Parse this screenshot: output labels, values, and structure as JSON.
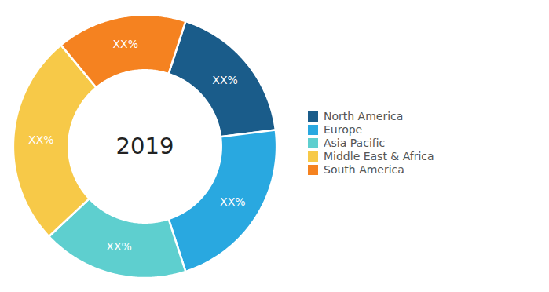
{
  "chart_data": {
    "type": "donut",
    "title": "2019",
    "categories": [
      "North America",
      "Europe",
      "Asia Pacific",
      "Middle East & Africa",
      "South America"
    ],
    "values": [
      18,
      22,
      18,
      26,
      16
    ],
    "colors": [
      "#1a5c8a",
      "#29a8e0",
      "#5ecfcf",
      "#f7c948",
      "#f58220"
    ],
    "value_labels": [
      "XX%",
      "XX%",
      "XX%",
      "XX%",
      "XX%"
    ],
    "legend": "right"
  }
}
